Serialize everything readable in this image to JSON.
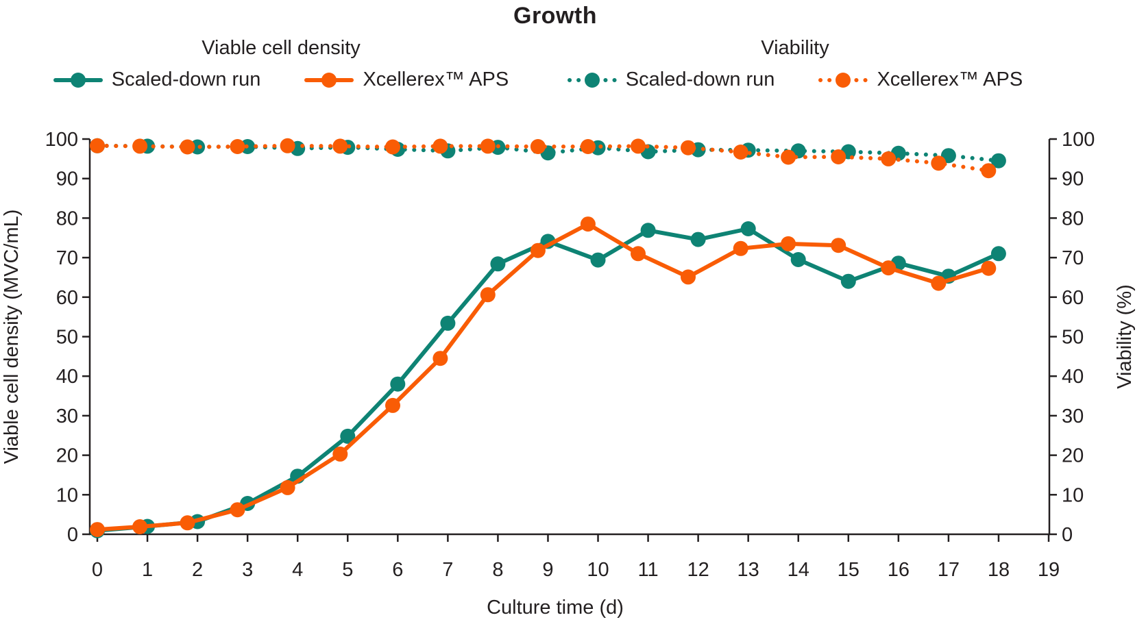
{
  "title": "Growth",
  "legend": {
    "group1": {
      "heading": "Viable cell density",
      "items": [
        {
          "label": "Scaled-down run",
          "color": "#0e8374",
          "style": "solid"
        },
        {
          "label": "Xcellerex™ APS",
          "color": "#f95c05",
          "style": "solid"
        }
      ]
    },
    "group2": {
      "heading": "Viability",
      "items": [
        {
          "label": "Scaled-down run",
          "color": "#0e8374",
          "style": "dotted"
        },
        {
          "label": "Xcellerex™ APS",
          "color": "#f95c05",
          "style": "dotted"
        }
      ]
    }
  },
  "chart_data": {
    "type": "line",
    "title": "Growth",
    "xlabel": "Culture time (d)",
    "ylabel_left": "Viable cell density (MVC/mL)",
    "ylabel_right": "Viability (%)",
    "xlim": [
      0,
      19
    ],
    "ylim_left": [
      0,
      100
    ],
    "ylim_right": [
      0,
      100
    ],
    "x_ticks": [
      0,
      1,
      2,
      3,
      4,
      5,
      6,
      7,
      8,
      9,
      10,
      11,
      12,
      13,
      14,
      15,
      16,
      17,
      18,
      19
    ],
    "y_ticks_left": [
      0,
      10,
      20,
      30,
      40,
      50,
      60,
      70,
      80,
      90,
      100
    ],
    "y_ticks_right": [
      0,
      10,
      20,
      30,
      40,
      50,
      60,
      70,
      80,
      90,
      100
    ],
    "grid": false,
    "legend_position": "top",
    "series": [
      {
        "name": "Scaled-down run (Viable cell density)",
        "axis": "left",
        "style": "solid",
        "color": "#0e8374",
        "x": [
          0,
          1,
          2,
          3,
          4,
          5,
          6,
          7,
          8,
          9,
          10,
          11,
          12,
          13,
          14,
          15,
          16,
          17,
          18
        ],
        "y": [
          0.9,
          2.0,
          3.2,
          7.8,
          14.7,
          24.8,
          38.0,
          53.4,
          68.4,
          74.1,
          69.4,
          76.9,
          74.6,
          77.3,
          69.5,
          64.0,
          68.6,
          65.3,
          71.0
        ]
      },
      {
        "name": "Xcellerex™ APS (Viable cell density)",
        "axis": "left",
        "style": "solid",
        "color": "#f95c05",
        "x": [
          0,
          0.85,
          1.8,
          2.8,
          3.8,
          4.85,
          5.9,
          6.85,
          7.8,
          8.8,
          9.8,
          10.8,
          11.8,
          12.85,
          13.8,
          14.8,
          15.8,
          16.8,
          17.8
        ],
        "y": [
          1.2,
          1.9,
          2.9,
          6.2,
          11.8,
          20.3,
          32.6,
          44.5,
          60.6,
          71.8,
          78.5,
          71.0,
          65.1,
          72.3,
          73.5,
          73.1,
          67.4,
          63.5,
          67.3
        ]
      },
      {
        "name": "Scaled-down run (Viability)",
        "axis": "right",
        "style": "dotted",
        "color": "#0e8374",
        "x": [
          0,
          1,
          2,
          3,
          4,
          5,
          6,
          7,
          8,
          9,
          10,
          11,
          12,
          13,
          14,
          15,
          16,
          17,
          18
        ],
        "y": [
          98.3,
          98.2,
          98.0,
          98.1,
          97.6,
          97.9,
          97.4,
          97.0,
          97.9,
          96.5,
          97.8,
          96.8,
          97.3,
          97.2,
          97.0,
          96.8,
          96.4,
          95.8,
          94.5
        ]
      },
      {
        "name": "Xcellerex™ APS (Viability)",
        "axis": "right",
        "style": "dotted",
        "color": "#f95c05",
        "x": [
          0,
          0.85,
          1.8,
          2.8,
          3.8,
          4.85,
          5.9,
          6.85,
          7.8,
          8.8,
          9.8,
          10.8,
          11.8,
          12.85,
          13.8,
          14.8,
          15.8,
          16.8,
          17.8
        ],
        "y": [
          98.3,
          98.2,
          98.0,
          98.1,
          98.3,
          98.2,
          98.0,
          98.2,
          98.2,
          98.1,
          98.1,
          98.2,
          97.8,
          96.7,
          95.4,
          95.5,
          95.0,
          93.9,
          92.0
        ]
      }
    ]
  }
}
